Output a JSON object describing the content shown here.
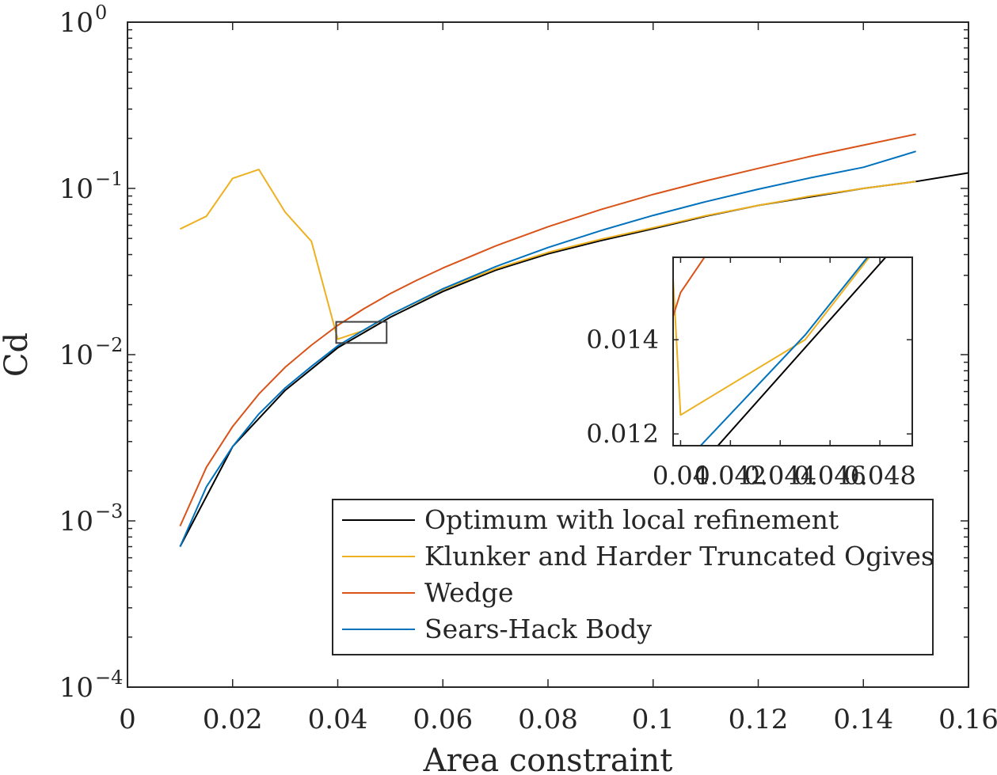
{
  "chart_data": [
    {
      "type": "line",
      "xlabel": "Area constraint",
      "ylabel": "Cd",
      "xlim": [
        0,
        0.16
      ],
      "ylim": [
        0.0001,
        1
      ],
      "yscale": "log",
      "grid": false,
      "legend_position": "bottom-right",
      "xticks": [
        0,
        0.02,
        0.04,
        0.06,
        0.08,
        0.1,
        0.12,
        0.14,
        0.16
      ],
      "xtick_labels": [
        "0",
        "0.02",
        "0.04",
        "0.06",
        "0.08",
        "0.1",
        "0.12",
        "0.14",
        "0.16"
      ],
      "yticks": [
        {
          "value": 1,
          "base": "10",
          "exp": "0"
        },
        {
          "value": 0.1,
          "base": "10",
          "exp": "−1"
        },
        {
          "value": 0.01,
          "base": "10",
          "exp": "−2"
        },
        {
          "value": 0.001,
          "base": "10",
          "exp": "−3"
        },
        {
          "value": 0.0001,
          "base": "10",
          "exp": "−4"
        }
      ],
      "series": [
        {
          "name": "Optimum with local refinement",
          "color": "#000000",
          "x": [
            0.01,
            0.02,
            0.03,
            0.04,
            0.05,
            0.06,
            0.07,
            0.08,
            0.09,
            0.1,
            0.11,
            0.12,
            0.13,
            0.14,
            0.15,
            0.16
          ],
          "y": [
            0.0007,
            0.0028,
            0.0061,
            0.011,
            0.0168,
            0.024,
            0.0322,
            0.0404,
            0.0485,
            0.0572,
            0.068,
            0.079,
            0.089,
            0.1,
            0.11,
            0.124
          ]
        },
        {
          "name": "Klunker and Harder Truncated Ogives",
          "color": "#EDB120",
          "x": [
            0.01,
            0.015,
            0.02,
            0.025,
            0.03,
            0.035,
            0.04,
            0.045,
            0.05,
            0.06,
            0.07,
            0.08,
            0.09,
            0.1,
            0.11,
            0.12,
            0.13,
            0.14,
            0.15
          ],
          "y": [
            0.057,
            0.068,
            0.115,
            0.13,
            0.072,
            0.048,
            0.0124,
            0.014,
            0.0174,
            0.0246,
            0.0328,
            0.0412,
            0.0494,
            0.058,
            0.0685,
            0.079,
            0.09,
            0.1,
            0.11
          ]
        },
        {
          "name": "Wedge",
          "color": "#D95319",
          "x": [
            0.01,
            0.015,
            0.02,
            0.025,
            0.03,
            0.035,
            0.04,
            0.045,
            0.05,
            0.055,
            0.06,
            0.07,
            0.08,
            0.09,
            0.1,
            0.11,
            0.12,
            0.13,
            0.14,
            0.15
          ],
          "y": [
            0.00093,
            0.0021,
            0.0037,
            0.0058,
            0.0084,
            0.0114,
            0.015,
            0.0189,
            0.0233,
            0.028,
            0.0332,
            0.045,
            0.0588,
            0.0745,
            0.092,
            0.111,
            0.132,
            0.156,
            0.182,
            0.212
          ]
        },
        {
          "name": "Sears-Hack Body",
          "color": "#0072BD",
          "x": [
            0.01,
            0.015,
            0.02,
            0.025,
            0.03,
            0.035,
            0.04,
            0.045,
            0.05,
            0.06,
            0.07,
            0.08,
            0.09,
            0.1,
            0.11,
            0.12,
            0.13,
            0.14,
            0.15
          ],
          "y": [
            0.0007,
            0.0016,
            0.0028,
            0.0044,
            0.0063,
            0.0085,
            0.0113,
            0.0141,
            0.0174,
            0.0249,
            0.0338,
            0.0441,
            0.0557,
            0.0688,
            0.0832,
            0.0989,
            0.116,
            0.134,
            0.167
          ]
        }
      ]
    },
    {
      "type": "line",
      "title": "",
      "xlim": [
        0.0397,
        0.0493
      ],
      "ylim": [
        0.01175,
        0.01575
      ],
      "ytick_labels": [
        "0.014",
        "0.012"
      ],
      "yticks": [
        0.014,
        0.012
      ],
      "xticks": [
        0.04,
        0.042,
        0.044,
        0.046,
        0.048
      ],
      "xtick_labels": [
        "0.04",
        "0.042",
        "0.044",
        "0.046",
        "0.048"
      ],
      "series": [
        {
          "name": "Optimum with local refinement",
          "color": "#000000",
          "x": [
            0.0399,
            0.05
          ],
          "y": [
            0.0108,
            0.0168
          ]
        },
        {
          "name": "Klunker and Harder Truncated Ogives",
          "color": "#EDB120",
          "x": [
            0.0397,
            0.04,
            0.045,
            0.05
          ],
          "y": [
            0.0153,
            0.0124,
            0.014,
            0.0174
          ]
        },
        {
          "name": "Wedge",
          "color": "#D95319",
          "x": [
            0.0397,
            0.04,
            0.045
          ],
          "y": [
            0.0145,
            0.015,
            0.0189
          ]
        },
        {
          "name": "Sears-Hack Body",
          "color": "#0072BD",
          "x": [
            0.04,
            0.045,
            0.05
          ],
          "y": [
            0.0113,
            0.0141,
            0.0174
          ]
        }
      ]
    }
  ]
}
